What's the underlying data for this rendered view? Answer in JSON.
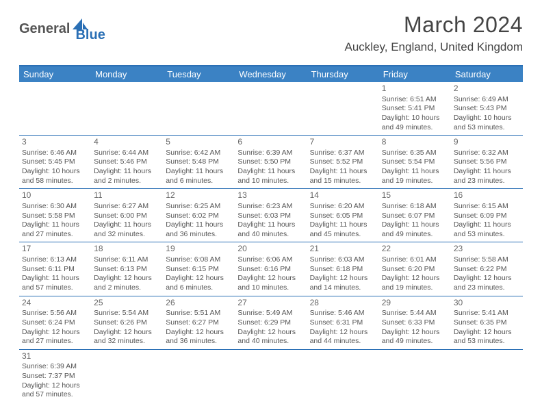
{
  "logo": {
    "part1": "General",
    "part2": "Blue"
  },
  "title": "March 2024",
  "location": "Auckley, England, United Kingdom",
  "colors": {
    "header_bg": "#3b82c4",
    "header_text": "#ffffff",
    "border": "#2a6fb5",
    "text": "#555555",
    "title_text": "#444444"
  },
  "weekdays": [
    "Sunday",
    "Monday",
    "Tuesday",
    "Wednesday",
    "Thursday",
    "Friday",
    "Saturday"
  ],
  "weeks": [
    [
      null,
      null,
      null,
      null,
      null,
      {
        "n": "1",
        "sr": "6:51 AM",
        "ss": "5:41 PM",
        "dl": "10 hours and 49 minutes."
      },
      {
        "n": "2",
        "sr": "6:49 AM",
        "ss": "5:43 PM",
        "dl": "10 hours and 53 minutes."
      }
    ],
    [
      {
        "n": "3",
        "sr": "6:46 AM",
        "ss": "5:45 PM",
        "dl": "10 hours and 58 minutes."
      },
      {
        "n": "4",
        "sr": "6:44 AM",
        "ss": "5:46 PM",
        "dl": "11 hours and 2 minutes."
      },
      {
        "n": "5",
        "sr": "6:42 AM",
        "ss": "5:48 PM",
        "dl": "11 hours and 6 minutes."
      },
      {
        "n": "6",
        "sr": "6:39 AM",
        "ss": "5:50 PM",
        "dl": "11 hours and 10 minutes."
      },
      {
        "n": "7",
        "sr": "6:37 AM",
        "ss": "5:52 PM",
        "dl": "11 hours and 15 minutes."
      },
      {
        "n": "8",
        "sr": "6:35 AM",
        "ss": "5:54 PM",
        "dl": "11 hours and 19 minutes."
      },
      {
        "n": "9",
        "sr": "6:32 AM",
        "ss": "5:56 PM",
        "dl": "11 hours and 23 minutes."
      }
    ],
    [
      {
        "n": "10",
        "sr": "6:30 AM",
        "ss": "5:58 PM",
        "dl": "11 hours and 27 minutes."
      },
      {
        "n": "11",
        "sr": "6:27 AM",
        "ss": "6:00 PM",
        "dl": "11 hours and 32 minutes."
      },
      {
        "n": "12",
        "sr": "6:25 AM",
        "ss": "6:02 PM",
        "dl": "11 hours and 36 minutes."
      },
      {
        "n": "13",
        "sr": "6:23 AM",
        "ss": "6:03 PM",
        "dl": "11 hours and 40 minutes."
      },
      {
        "n": "14",
        "sr": "6:20 AM",
        "ss": "6:05 PM",
        "dl": "11 hours and 45 minutes."
      },
      {
        "n": "15",
        "sr": "6:18 AM",
        "ss": "6:07 PM",
        "dl": "11 hours and 49 minutes."
      },
      {
        "n": "16",
        "sr": "6:15 AM",
        "ss": "6:09 PM",
        "dl": "11 hours and 53 minutes."
      }
    ],
    [
      {
        "n": "17",
        "sr": "6:13 AM",
        "ss": "6:11 PM",
        "dl": "11 hours and 57 minutes."
      },
      {
        "n": "18",
        "sr": "6:11 AM",
        "ss": "6:13 PM",
        "dl": "12 hours and 2 minutes."
      },
      {
        "n": "19",
        "sr": "6:08 AM",
        "ss": "6:15 PM",
        "dl": "12 hours and 6 minutes."
      },
      {
        "n": "20",
        "sr": "6:06 AM",
        "ss": "6:16 PM",
        "dl": "12 hours and 10 minutes."
      },
      {
        "n": "21",
        "sr": "6:03 AM",
        "ss": "6:18 PM",
        "dl": "12 hours and 14 minutes."
      },
      {
        "n": "22",
        "sr": "6:01 AM",
        "ss": "6:20 PM",
        "dl": "12 hours and 19 minutes."
      },
      {
        "n": "23",
        "sr": "5:58 AM",
        "ss": "6:22 PM",
        "dl": "12 hours and 23 minutes."
      }
    ],
    [
      {
        "n": "24",
        "sr": "5:56 AM",
        "ss": "6:24 PM",
        "dl": "12 hours and 27 minutes."
      },
      {
        "n": "25",
        "sr": "5:54 AM",
        "ss": "6:26 PM",
        "dl": "12 hours and 32 minutes."
      },
      {
        "n": "26",
        "sr": "5:51 AM",
        "ss": "6:27 PM",
        "dl": "12 hours and 36 minutes."
      },
      {
        "n": "27",
        "sr": "5:49 AM",
        "ss": "6:29 PM",
        "dl": "12 hours and 40 minutes."
      },
      {
        "n": "28",
        "sr": "5:46 AM",
        "ss": "6:31 PM",
        "dl": "12 hours and 44 minutes."
      },
      {
        "n": "29",
        "sr": "5:44 AM",
        "ss": "6:33 PM",
        "dl": "12 hours and 49 minutes."
      },
      {
        "n": "30",
        "sr": "5:41 AM",
        "ss": "6:35 PM",
        "dl": "12 hours and 53 minutes."
      }
    ],
    [
      {
        "n": "31",
        "sr": "6:39 AM",
        "ss": "7:37 PM",
        "dl": "12 hours and 57 minutes."
      },
      null,
      null,
      null,
      null,
      null,
      null
    ]
  ],
  "labels": {
    "sunrise": "Sunrise:",
    "sunset": "Sunset:",
    "daylight": "Daylight:"
  }
}
